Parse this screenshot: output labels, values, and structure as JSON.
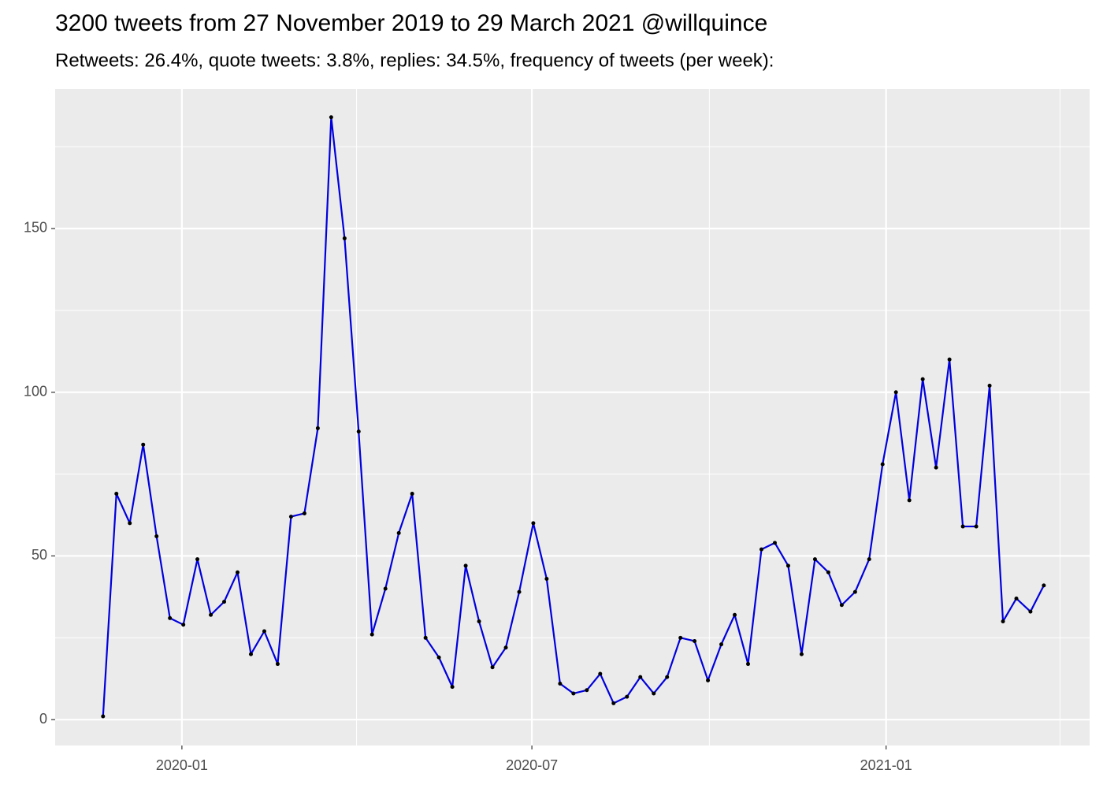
{
  "chart_data": {
    "type": "line",
    "title": "3200 tweets from 27 November 2019 to 29 March 2021 @willquince",
    "subtitle": "Retweets: 26.4%, quote tweets: 3.8%, replies: 34.5%, frequency of tweets (per week):",
    "x": [
      2019.888,
      2019.907,
      2019.926,
      2019.945,
      2019.964,
      2019.983,
      2020.002,
      2020.022,
      2020.041,
      2020.06,
      2020.079,
      2020.098,
      2020.117,
      2020.136,
      2020.155,
      2020.174,
      2020.193,
      2020.212,
      2020.231,
      2020.251,
      2020.27,
      2020.289,
      2020.308,
      2020.327,
      2020.346,
      2020.365,
      2020.384,
      2020.403,
      2020.422,
      2020.441,
      2020.46,
      2020.479,
      2020.499,
      2020.518,
      2020.537,
      2020.556,
      2020.575,
      2020.594,
      2020.613,
      2020.632,
      2020.651,
      2020.67,
      2020.689,
      2020.708,
      2020.728,
      2020.747,
      2020.766,
      2020.785,
      2020.804,
      2020.823,
      2020.842,
      2020.861,
      2020.88,
      2020.899,
      2020.918,
      2020.937,
      2020.956,
      2020.976,
      2020.995,
      2021.014,
      2021.033,
      2021.052,
      2021.071,
      2021.09,
      2021.109,
      2021.128,
      2021.147,
      2021.166,
      2021.185,
      2021.205,
      2021.224
    ],
    "values": [
      1,
      69,
      60,
      84,
      56,
      31,
      29,
      49,
      32,
      36,
      45,
      20,
      27,
      17,
      62,
      63,
      89,
      184,
      147,
      88,
      26,
      40,
      57,
      69,
      25,
      19,
      10,
      47,
      30,
      16,
      22,
      39,
      60,
      43,
      11,
      8,
      9,
      14,
      5,
      7,
      13,
      8,
      13,
      25,
      24,
      12,
      23,
      32,
      17,
      52,
      54,
      47,
      20,
      49,
      45,
      35,
      39,
      49,
      78,
      100,
      67,
      104,
      77,
      110,
      59,
      59,
      102,
      30,
      37,
      33,
      41
    ],
    "color": "#0000dd",
    "point_color": "#000000",
    "xlim": [
      2019.82,
      2021.289
    ],
    "xticks": [
      {
        "value": 2020.0,
        "label": "2020-01"
      },
      {
        "value": 2020.497,
        "label": "2020-07"
      },
      {
        "value": 2021.0,
        "label": "2021-01"
      }
    ],
    "x_minor_grid": [
      2020.248,
      2020.749,
      2021.247
    ],
    "ylim": [
      -7.9,
      192.6
    ],
    "yticks": [
      0,
      50,
      100,
      150
    ],
    "y_minor_grid": [
      25,
      75,
      125,
      175
    ],
    "grid": true
  }
}
